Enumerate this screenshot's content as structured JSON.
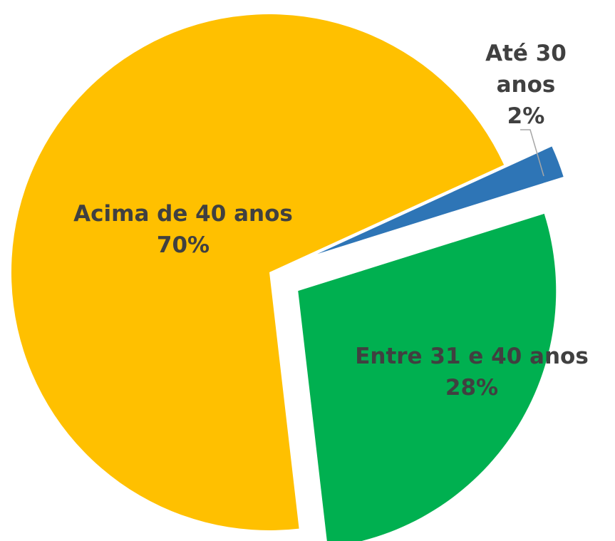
{
  "chart_data": {
    "type": "pie",
    "categories": [
      "Até 30 anos",
      "Entre 31 e 40 anos",
      "Acima de 40 anos"
    ],
    "values": [
      2,
      28,
      70
    ],
    "value_labels": [
      "2%",
      "28%",
      "70%"
    ],
    "colors": [
      "#2e75b6",
      "#00b050",
      "#ffc000"
    ]
  }
}
